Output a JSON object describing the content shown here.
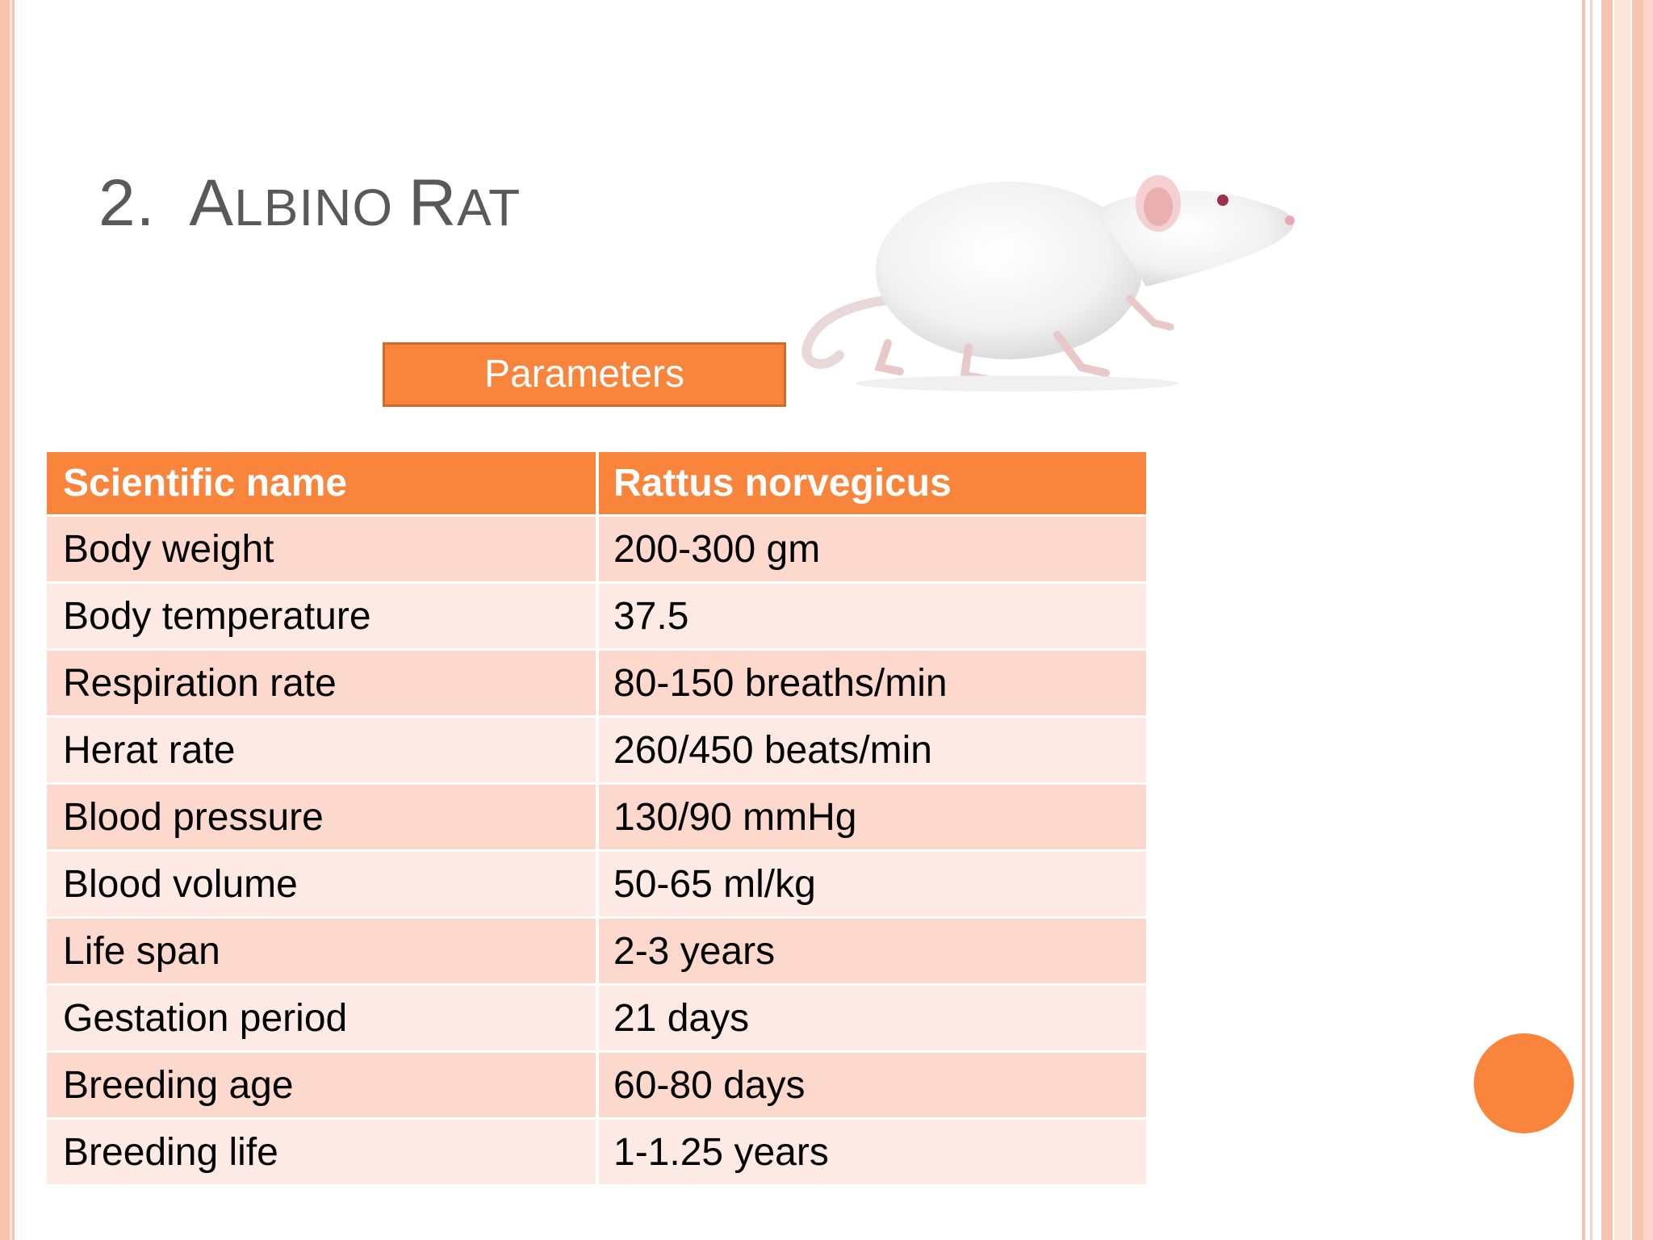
{
  "slide": {
    "title_number": "2.",
    "title_parts": [
      {
        "text": "A",
        "size": "cap"
      },
      {
        "text": "LBINO",
        "size": "small"
      },
      {
        "text": " ",
        "size": "small"
      },
      {
        "text": "R",
        "size": "cap"
      },
      {
        "text": "AT",
        "size": "small"
      }
    ],
    "parameters_label": "Parameters"
  },
  "table": {
    "header": [
      "Scientific name",
      "Rattus norvegicus"
    ],
    "rows": [
      [
        "Body weight",
        "200-300 gm"
      ],
      [
        "Body temperature",
        "37.5"
      ],
      [
        "Respiration rate",
        "80-150 breaths/min"
      ],
      [
        "Herat rate",
        "260/450 beats/min"
      ],
      [
        "Blood pressure",
        "130/90 mmHg"
      ],
      [
        "Blood volume",
        "50-65 ml/kg"
      ],
      [
        "Life span",
        "2-3 years"
      ],
      [
        "Gestation period",
        "21 days"
      ],
      [
        "Breeding age",
        "60-80 days"
      ],
      [
        "Breeding life",
        "1-1.25 years"
      ]
    ]
  },
  "colors": {
    "accent": "#f9853d",
    "row_odd": "#fdd8cd",
    "row_even": "#fdeae5",
    "title": "#595959",
    "border": "#f7c4b0"
  },
  "image": {
    "icon": "albino-rat-photo"
  }
}
